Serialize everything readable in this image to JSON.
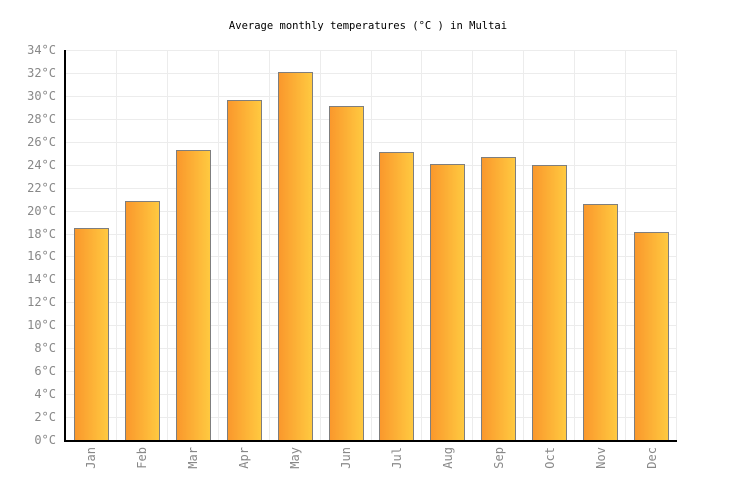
{
  "title": "Average monthly temperatures (°C ) in Multai",
  "chart_data": {
    "type": "bar",
    "title": "Average monthly temperatures (°C ) in Multai",
    "categories": [
      "Jan",
      "Feb",
      "Mar",
      "Apr",
      "May",
      "Jun",
      "Jul",
      "Aug",
      "Sep",
      "Oct",
      "Nov",
      "Dec"
    ],
    "values": [
      18.5,
      20.8,
      25.3,
      29.6,
      32.1,
      29.1,
      25.1,
      24.1,
      24.7,
      24.0,
      20.6,
      18.1
    ],
    "unit": "°C",
    "xlabel": "",
    "ylabel": "",
    "ylim": [
      0,
      34
    ],
    "ytick_step": 2,
    "ytick_labels": [
      "0°C",
      "2°C",
      "4°C",
      "6°C",
      "8°C",
      "10°C",
      "12°C",
      "14°C",
      "16°C",
      "18°C",
      "20°C",
      "22°C",
      "24°C",
      "26°C",
      "28°C",
      "30°C",
      "32°C",
      "34°C"
    ],
    "grid": true,
    "legend_position": "none",
    "colors": {
      "bar_gradient_left": "#FA982C",
      "bar_gradient_right": "#FFC940",
      "bar_border": "#7E7E7E",
      "gridline": "#ECECEC",
      "axis": "#000000",
      "tick_label": "#888888",
      "title": "#000000",
      "background": "#FFFFFF"
    }
  }
}
